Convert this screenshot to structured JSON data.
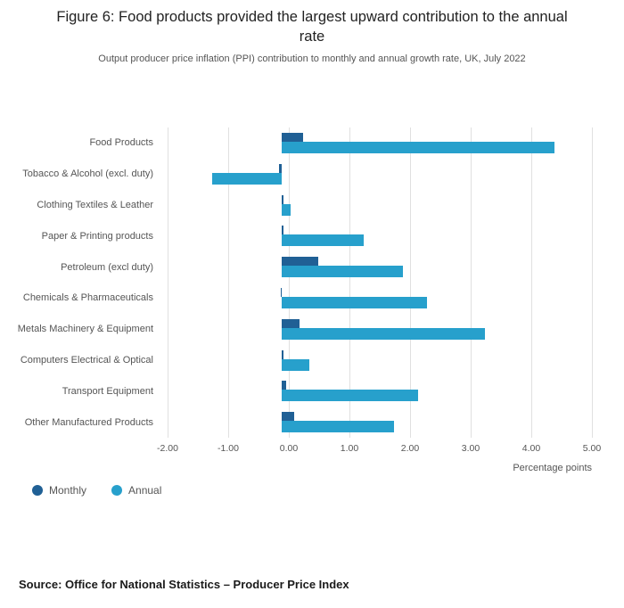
{
  "header": {
    "title": "Figure 6: Food products provided the largest upward contribution to the annual rate",
    "subtitle": "Output producer price inflation (PPI) contribution to monthly and annual growth rate, UK, July 2022"
  },
  "chart_data": {
    "type": "bar",
    "orientation": "horizontal",
    "categories": [
      "Food Products",
      "Tobacco & Alcohol (excl. duty)",
      "Clothing Textiles & Leather",
      "Paper & Printing products",
      "Petroleum (excl duty)",
      "Chemicals & Pharmaceuticals",
      "Metals Machinery & Equipment",
      "Computers Electrical & Optical",
      "Transport Equipment",
      "Other Manufactured Products"
    ],
    "series": [
      {
        "name": "Monthly",
        "color": "#206095",
        "values": [
          0.35,
          -0.05,
          0.02,
          0.03,
          0.6,
          -0.02,
          0.3,
          0.03,
          0.08,
          0.2
        ]
      },
      {
        "name": "Annual",
        "color": "#27a0cc",
        "values": [
          4.5,
          -1.15,
          0.15,
          1.35,
          2.0,
          2.4,
          3.35,
          0.45,
          2.25,
          1.85
        ]
      }
    ],
    "xlabel": "Percentage points",
    "xlim": [
      -2,
      5
    ],
    "x_ticks": [
      "-2.00",
      "-1.00",
      "0.00",
      "1.00",
      "2.00",
      "3.00",
      "4.00",
      "5.00"
    ],
    "x_tick_values": [
      -2,
      -1,
      0,
      1,
      2,
      3,
      4,
      5
    ],
    "grid": true,
    "legend_position": "bottom-left"
  },
  "footer": {
    "source": "Source: Office for National Statistics – Producer Price Index"
  }
}
